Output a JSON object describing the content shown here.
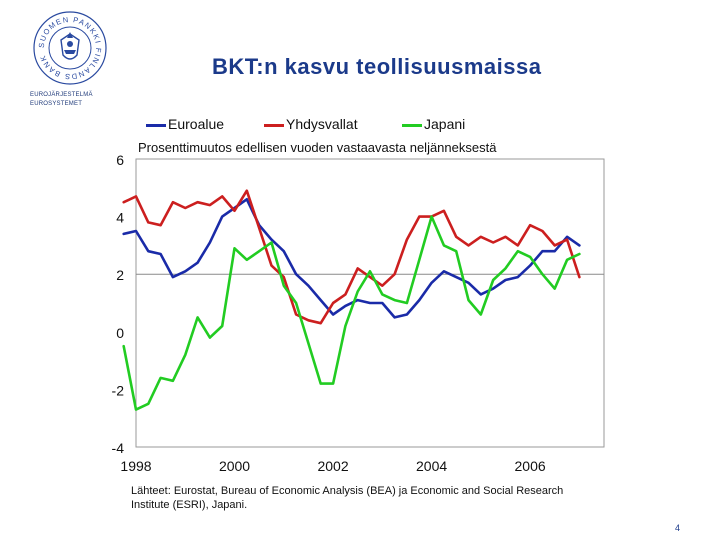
{
  "slide": {
    "title": "BKT:n kasvu teollisuusmaissa",
    "page_number": "4",
    "logo": {
      "ring_text": "SUOMEN PANKKI FINLANDS BANK",
      "line1": "EUROJÄRJESTELMÄ",
      "line2": "EUROSYSTEMET"
    }
  },
  "chart_data": {
    "type": "line",
    "subtitle": "Prosenttimuutos edellisen vuoden vastaavasta neljänneksestä",
    "xlabel": "",
    "ylabel": "",
    "xlim": [
      1998,
      2007.5
    ],
    "ylim": [
      -4,
      6
    ],
    "x_ticks": [
      "1998",
      "2000",
      "2002",
      "2004",
      "2006"
    ],
    "y_ticks": [
      "6",
      "4",
      "2",
      "0",
      "-2",
      "-4"
    ],
    "reference_line": 2,
    "legend_position": "top",
    "source_note": "Lähteet: Eurostat, Bureau of Economic Analysis (BEA) ja Economic and Social Research Institute (ESRI), Japani.",
    "series": [
      {
        "name": "Euroalue",
        "color": "#1a2ba8",
        "x": [
          1997.75,
          1998.0,
          1998.25,
          1998.5,
          1998.75,
          1999.0,
          1999.25,
          1999.5,
          1999.75,
          2000.0,
          2000.25,
          2000.5,
          2000.75,
          2001.0,
          2001.25,
          2001.5,
          2001.75,
          2002.0,
          2002.25,
          2002.5,
          2002.75,
          2003.0,
          2003.25,
          2003.5,
          2003.75,
          2004.0,
          2004.25,
          2004.5,
          2004.75,
          2005.0,
          2005.25,
          2005.5,
          2005.75,
          2006.0,
          2006.25,
          2006.5,
          2006.75,
          2007.0
        ],
        "values": [
          3.4,
          3.5,
          2.8,
          2.7,
          1.9,
          2.1,
          2.4,
          3.1,
          4.0,
          4.3,
          4.6,
          3.7,
          3.2,
          2.8,
          2.0,
          1.6,
          1.1,
          0.6,
          0.9,
          1.1,
          1.0,
          1.0,
          0.5,
          0.6,
          1.1,
          1.7,
          2.1,
          1.9,
          1.7,
          1.3,
          1.5,
          1.8,
          1.9,
          2.3,
          2.8,
          2.8,
          3.3,
          3.0
        ]
      },
      {
        "name": "Yhdysvallat",
        "color": "#cc1f1f",
        "x": [
          1997.75,
          1998.0,
          1998.25,
          1998.5,
          1998.75,
          1999.0,
          1999.25,
          1999.5,
          1999.75,
          2000.0,
          2000.25,
          2000.5,
          2000.75,
          2001.0,
          2001.25,
          2001.5,
          2001.75,
          2002.0,
          2002.25,
          2002.5,
          2002.75,
          2003.0,
          2003.25,
          2003.5,
          2003.75,
          2004.0,
          2004.25,
          2004.5,
          2004.75,
          2005.0,
          2005.25,
          2005.5,
          2005.75,
          2006.0,
          2006.25,
          2006.5,
          2006.75,
          2007.0
        ],
        "values": [
          4.5,
          4.7,
          3.8,
          3.7,
          4.5,
          4.3,
          4.5,
          4.4,
          4.7,
          4.2,
          4.9,
          3.6,
          2.3,
          1.9,
          0.6,
          0.4,
          0.3,
          1.0,
          1.3,
          2.2,
          1.9,
          1.6,
          2.0,
          3.2,
          4.0,
          4.0,
          4.2,
          3.3,
          3.0,
          3.3,
          3.1,
          3.3,
          3.0,
          3.7,
          3.5,
          3.0,
          3.2,
          1.9
        ]
      },
      {
        "name": "Japani",
        "color": "#22cc22",
        "x": [
          1997.75,
          1998.0,
          1998.25,
          1998.5,
          1998.75,
          1999.0,
          1999.25,
          1999.5,
          1999.75,
          2000.0,
          2000.25,
          2000.5,
          2000.75,
          2001.0,
          2001.25,
          2001.5,
          2001.75,
          2002.0,
          2002.25,
          2002.5,
          2002.75,
          2003.0,
          2003.25,
          2003.5,
          2003.75,
          2004.0,
          2004.25,
          2004.5,
          2004.75,
          2005.0,
          2005.25,
          2005.5,
          2005.75,
          2006.0,
          2006.25,
          2006.5,
          2006.75,
          2007.0
        ],
        "values": [
          -0.5,
          -2.7,
          -2.5,
          -1.6,
          -1.7,
          -0.8,
          0.5,
          -0.2,
          0.2,
          2.9,
          2.5,
          2.8,
          3.1,
          1.6,
          1.0,
          -0.4,
          -1.8,
          -1.8,
          0.2,
          1.4,
          2.1,
          1.3,
          1.1,
          1.0,
          2.5,
          4.0,
          3.0,
          2.8,
          1.1,
          0.6,
          1.8,
          2.2,
          2.8,
          2.6,
          2.0,
          1.5,
          2.5,
          2.7
        ]
      }
    ]
  }
}
